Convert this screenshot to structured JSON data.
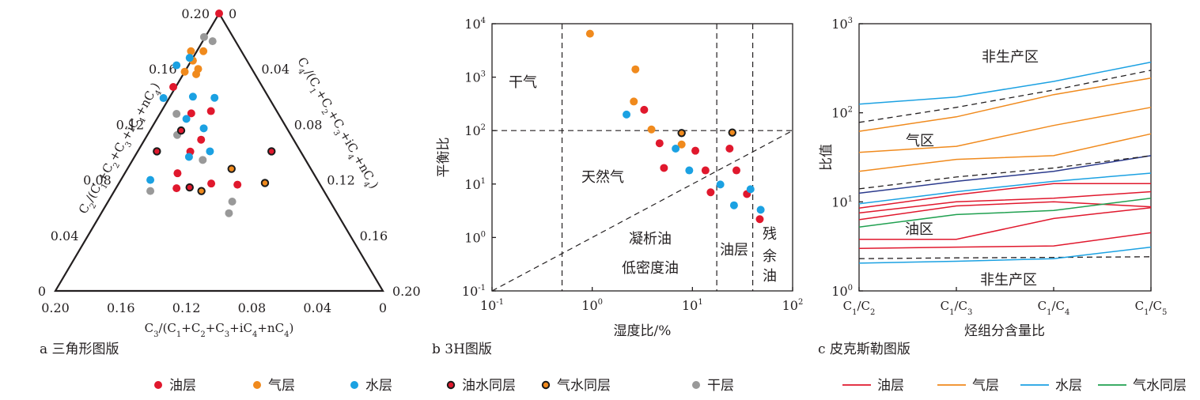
{
  "colors": {
    "oil": "#e0182d",
    "gas": "#f08a1d",
    "water": "#1ba1e2",
    "dry": "#999999",
    "gaswater_line": "#20a050",
    "navy": "#2b3a8c",
    "axis": "#231f20"
  },
  "legend": {
    "markers": [
      {
        "label": "油层",
        "type": "oil"
      },
      {
        "label": "气层",
        "type": "gas"
      },
      {
        "label": "水层",
        "type": "water"
      },
      {
        "label": "油水同层",
        "type": "oilwater"
      },
      {
        "label": "气水同层",
        "type": "gaswater"
      },
      {
        "label": "干层",
        "type": "dry"
      }
    ],
    "lines": [
      {
        "label": "油层",
        "type": "oil"
      },
      {
        "label": "气层",
        "type": "gas"
      },
      {
        "label": "水层",
        "type": "water"
      },
      {
        "label": "气水同层",
        "type": "gaswater"
      }
    ]
  },
  "chart_data": [
    {
      "type": "scatter",
      "subtitle": "a 三角形图版",
      "xlabel": "C3/(C1+C2+C3+iC4+nC4)",
      "left_label": "C2/(C1+C2+C3+iC4+nC4)",
      "right_label": "C4/(C1+C2+C3+iC4+nC4)",
      "bottom_ticks": [
        "0.20",
        "0.16",
        "0.12",
        "0.08",
        "0.04",
        "0"
      ],
      "left_ticks": [
        "0",
        "0.04",
        "0.08",
        "0.12",
        "0.16",
        "0.20"
      ],
      "right_ticks": [
        "0",
        "0.04",
        "0.08",
        "0.12",
        "0.16",
        "0.20"
      ],
      "points": [
        {
          "t": "oil",
          "u": 0.5,
          "v": 1.0
        },
        {
          "t": "oil",
          "u": 0.36,
          "v": 0.735
        },
        {
          "t": "oil",
          "u": 0.415,
          "v": 0.64
        },
        {
          "t": "oil",
          "u": 0.475,
          "v": 0.648
        },
        {
          "t": "oil",
          "u": 0.445,
          "v": 0.545
        },
        {
          "t": "oil",
          "u": 0.412,
          "v": 0.502
        },
        {
          "t": "oil",
          "u": 0.373,
          "v": 0.424
        },
        {
          "t": "oil",
          "u": 0.37,
          "v": 0.37
        },
        {
          "t": "oil",
          "u": 0.476,
          "v": 0.387
        },
        {
          "t": "oil",
          "u": 0.556,
          "v": 0.383
        },
        {
          "t": "gas",
          "u": 0.414,
          "v": 0.864
        },
        {
          "t": "gas",
          "u": 0.452,
          "v": 0.864
        },
        {
          "t": "gas",
          "u": 0.42,
          "v": 0.83
        },
        {
          "t": "gas",
          "u": 0.436,
          "v": 0.8
        },
        {
          "t": "gas",
          "u": 0.395,
          "v": 0.79
        },
        {
          "t": "gas",
          "u": 0.43,
          "v": 0.781
        },
        {
          "t": "water",
          "u": 0.41,
          "v": 0.84
        },
        {
          "t": "water",
          "u": 0.37,
          "v": 0.813
        },
        {
          "t": "water",
          "u": 0.33,
          "v": 0.695
        },
        {
          "t": "water",
          "u": 0.42,
          "v": 0.7
        },
        {
          "t": "water",
          "u": 0.486,
          "v": 0.696
        },
        {
          "t": "water",
          "u": 0.4,
          "v": 0.62
        },
        {
          "t": "water",
          "u": 0.453,
          "v": 0.586
        },
        {
          "t": "water",
          "u": 0.472,
          "v": 0.503
        },
        {
          "t": "water",
          "u": 0.408,
          "v": 0.483
        },
        {
          "t": "water",
          "u": 0.29,
          "v": 0.4
        },
        {
          "t": "dry",
          "u": 0.454,
          "v": 0.915
        },
        {
          "t": "dry",
          "u": 0.48,
          "v": 0.9
        },
        {
          "t": "dry",
          "u": 0.37,
          "v": 0.638
        },
        {
          "t": "dry",
          "u": 0.372,
          "v": 0.562
        },
        {
          "t": "dry",
          "u": 0.45,
          "v": 0.472
        },
        {
          "t": "dry",
          "u": 0.29,
          "v": 0.36
        },
        {
          "t": "dry",
          "u": 0.54,
          "v": 0.322
        },
        {
          "t": "dry",
          "u": 0.53,
          "v": 0.28
        },
        {
          "t": "oilwater",
          "u": 0.384,
          "v": 0.578
        },
        {
          "t": "oilwater",
          "u": 0.31,
          "v": 0.503
        },
        {
          "t": "oilwater",
          "u": 0.66,
          "v": 0.503
        },
        {
          "t": "oilwater",
          "u": 0.41,
          "v": 0.373
        },
        {
          "t": "gaswater",
          "u": 0.538,
          "v": 0.44
        },
        {
          "t": "gaswater",
          "u": 0.64,
          "v": 0.389
        },
        {
          "t": "gaswater",
          "u": 0.446,
          "v": 0.36
        }
      ]
    },
    {
      "type": "scatter",
      "subtitle": "b 3H图版",
      "xlabel": "湿度比/%",
      "ylabel": "平衡比",
      "xscale": "log",
      "yscale": "log",
      "xlim": [
        0.1,
        100
      ],
      "ylim": [
        0.1,
        10000
      ],
      "x_ticks": [
        {
          "m": "10",
          "e": "-1"
        },
        {
          "m": "10",
          "e": "0"
        },
        {
          "m": "10",
          "e": "1"
        },
        {
          "m": "10",
          "e": "2"
        }
      ],
      "y_ticks": [
        {
          "m": "10",
          "e": "-1"
        },
        {
          "m": "10",
          "e": "0"
        },
        {
          "m": "10",
          "e": "1"
        },
        {
          "m": "10",
          "e": "2"
        },
        {
          "m": "10",
          "e": "3"
        },
        {
          "m": "10",
          "e": "4"
        }
      ],
      "region_labels": [
        "干气",
        "天然气",
        "凝析油",
        "低密度油",
        "油层",
        "残",
        "余",
        "油"
      ],
      "boundaries": {
        "vertical_x": [
          0.5,
          17.5,
          40
        ],
        "horizontal_y": 100
      },
      "points": [
        {
          "t": "gas",
          "x": 0.95,
          "y": 6500
        },
        {
          "t": "gas",
          "x": 2.7,
          "y": 1400
        },
        {
          "t": "gas",
          "x": 2.6,
          "y": 350
        },
        {
          "t": "gas",
          "x": 3.9,
          "y": 105
        },
        {
          "t": "gas",
          "x": 7.8,
          "y": 55
        },
        {
          "t": "oil",
          "x": 3.3,
          "y": 245
        },
        {
          "t": "oil",
          "x": 4.7,
          "y": 58
        },
        {
          "t": "oil",
          "x": 5.2,
          "y": 20
        },
        {
          "t": "oil",
          "x": 10.7,
          "y": 42
        },
        {
          "t": "oil",
          "x": 13.5,
          "y": 18
        },
        {
          "t": "oil",
          "x": 15.2,
          "y": 7
        },
        {
          "t": "oil",
          "x": 23.5,
          "y": 46
        },
        {
          "t": "oil",
          "x": 27.5,
          "y": 18
        },
        {
          "t": "oil",
          "x": 35,
          "y": 6.5
        },
        {
          "t": "oil",
          "x": 47,
          "y": 2.2
        },
        {
          "t": "water",
          "x": 2.2,
          "y": 200
        },
        {
          "t": "water",
          "x": 6.8,
          "y": 46
        },
        {
          "t": "water",
          "x": 9.3,
          "y": 18
        },
        {
          "t": "water",
          "x": 19,
          "y": 9.8
        },
        {
          "t": "water",
          "x": 26,
          "y": 4
        },
        {
          "t": "water",
          "x": 38,
          "y": 8
        },
        {
          "t": "water",
          "x": 48,
          "y": 3.3
        },
        {
          "t": "oilwater",
          "x": 7.8,
          "y": 90
        },
        {
          "t": "oilwater",
          "x": 25,
          "y": 92
        }
      ]
    },
    {
      "type": "line",
      "subtitle": "c 皮克斯勒图版",
      "xlabel": "烃组分含量比",
      "ylabel": "比值",
      "yscale": "log",
      "ylim": [
        1,
        1000
      ],
      "categories": [
        {
          "a": "C",
          "a1": "1",
          "b": "/C",
          "b1": "2"
        },
        {
          "a": "C",
          "a1": "1",
          "b": "/C",
          "b1": "3"
        },
        {
          "a": "C",
          "a1": "1",
          "b": "/C",
          "b1": "4"
        },
        {
          "a": "C",
          "a1": "1",
          "b": "/C",
          "b1": "5"
        }
      ],
      "y_ticks": [
        {
          "m": "10",
          "e": "0"
        },
        {
          "m": "10",
          "e": "1"
        },
        {
          "m": "10",
          "e": "2"
        },
        {
          "m": "10",
          "e": "3"
        }
      ],
      "region_labels": [
        "非生产区",
        "气区",
        "油区",
        "非生产区"
      ],
      "series": [
        {
          "t": "water",
          "values": [
            125,
            150,
            225,
            370
          ]
        },
        {
          "t": "dash",
          "values": [
            78,
            115,
            180,
            300
          ]
        },
        {
          "t": "gas",
          "values": [
            62,
            90,
            160,
            245
          ]
        },
        {
          "t": "gas",
          "values": [
            36,
            42,
            72,
            115
          ]
        },
        {
          "t": "gas",
          "values": [
            22,
            30,
            33,
            58
          ]
        },
        {
          "t": "navy",
          "values": [
            12.5,
            17,
            22,
            33
          ]
        },
        {
          "t": "dash",
          "values": [
            14,
            19,
            24,
            33
          ]
        },
        {
          "t": "water",
          "values": [
            9.5,
            13,
            17,
            21
          ]
        },
        {
          "t": "oil",
          "values": [
            8.5,
            12,
            16,
            16
          ]
        },
        {
          "t": "oil",
          "values": [
            7.5,
            10,
            11,
            13
          ]
        },
        {
          "t": "oil",
          "values": [
            6.3,
            9,
            10,
            8.8
          ]
        },
        {
          "t": "gaswater",
          "values": [
            5.2,
            7.2,
            8,
            11
          ]
        },
        {
          "t": "oil",
          "values": [
            3.8,
            3.8,
            6.5,
            8.6
          ]
        },
        {
          "t": "oil",
          "values": [
            3.0,
            3.1,
            3.2,
            4.5
          ]
        },
        {
          "t": "dash",
          "values": [
            2.3,
            2.35,
            2.38,
            2.42
          ]
        },
        {
          "t": "water",
          "values": [
            2.05,
            2.15,
            2.3,
            3.1
          ]
        }
      ]
    }
  ]
}
